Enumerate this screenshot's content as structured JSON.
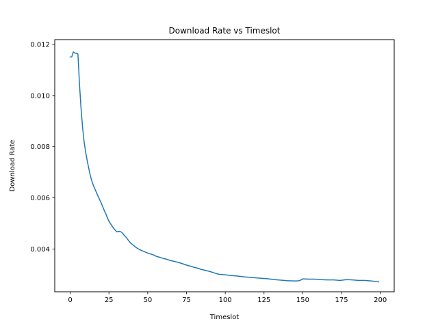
{
  "chart_data": {
    "type": "line",
    "title": "Download Rate vs Timeslot",
    "xlabel": "Timeslot",
    "ylabel": "Download Rate",
    "xlim": [
      -9.95,
      208.95
    ],
    "ylim": [
      0.002324,
      0.01219
    ],
    "xticks": [
      0,
      25,
      50,
      75,
      100,
      125,
      150,
      175,
      200
    ],
    "yticks": [
      0.004,
      0.006,
      0.008,
      0.01,
      0.012
    ],
    "ytick_labels": [
      "0.004",
      "0.006",
      "0.008",
      "0.010",
      "0.012"
    ],
    "grid": false,
    "series": [
      {
        "color": "#1f77b4",
        "x": [
          0,
          1,
          2,
          3,
          4,
          5,
          6,
          7,
          8,
          9,
          10,
          11,
          12,
          13,
          14,
          15,
          16,
          17,
          18,
          19,
          20,
          21,
          22,
          23,
          24,
          25,
          26,
          27,
          28,
          29,
          30,
          31,
          32,
          33,
          34,
          35,
          36,
          37,
          38,
          39,
          40,
          42,
          44,
          46,
          48,
          50,
          52,
          54,
          56,
          58,
          60,
          62,
          64,
          66,
          68,
          70,
          72,
          74,
          76,
          78,
          80,
          82,
          84,
          86,
          88,
          90,
          92,
          94,
          96,
          98,
          100,
          104,
          108,
          112,
          116,
          120,
          124,
          128,
          132,
          136,
          140,
          144,
          146,
          148,
          150,
          154,
          158,
          162,
          166,
          170,
          172,
          174,
          178,
          182,
          186,
          190,
          194,
          198,
          199
        ],
        "y": [
          0.01151,
          0.01151,
          0.01171,
          0.01166,
          0.01166,
          0.01163,
          0.01045,
          0.0095,
          0.00876,
          0.00818,
          0.00778,
          0.00745,
          0.00715,
          0.00687,
          0.00665,
          0.00648,
          0.00634,
          0.0062,
          0.00606,
          0.00593,
          0.0058,
          0.00565,
          0.0055,
          0.00537,
          0.00522,
          0.00509,
          0.00499,
          0.0049,
          0.00481,
          0.00474,
          0.00467,
          0.00468,
          0.00469,
          0.00466,
          0.0046,
          0.00452,
          0.00446,
          0.00438,
          0.0043,
          0.00423,
          0.00418,
          0.00408,
          0.004,
          0.00394,
          0.00389,
          0.00384,
          0.0038,
          0.00376,
          0.0037,
          0.00367,
          0.00363,
          0.0036,
          0.00356,
          0.00353,
          0.0035,
          0.00347,
          0.00343,
          0.00339,
          0.00335,
          0.00332,
          0.00328,
          0.00325,
          0.00321,
          0.00318,
          0.00315,
          0.00312,
          0.00308,
          0.00304,
          0.00301,
          0.003,
          0.00299,
          0.00296,
          0.00294,
          0.00291,
          0.00289,
          0.00287,
          0.00285,
          0.00283,
          0.0028,
          0.00278,
          0.00276,
          0.00275,
          0.00275,
          0.00276,
          0.00283,
          0.00282,
          0.00282,
          0.0028,
          0.00279,
          0.00279,
          0.00278,
          0.00277,
          0.0028,
          0.00279,
          0.00277,
          0.00277,
          0.00275,
          0.00272,
          0.00271
        ]
      }
    ]
  }
}
